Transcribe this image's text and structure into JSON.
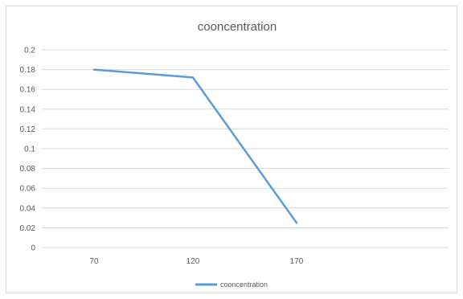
{
  "chart_data": {
    "type": "line",
    "title": "cooncentration",
    "categories": [
      "70",
      "120",
      "170"
    ],
    "series": [
      {
        "name": "cooncentration",
        "values": [
          0.18,
          0.172,
          0.025
        ]
      }
    ],
    "ylim": [
      0,
      0.2
    ],
    "y_ticks": [
      "0",
      "0.02",
      "0.04",
      "0.06",
      "0.08",
      "0.1",
      "0.12",
      "0.14",
      "0.16",
      "0.18",
      "0.2"
    ],
    "grid": true,
    "legend_position": "bottom",
    "colors": {
      "series": "#5b9bd5",
      "grid": "#d9d9d9",
      "text": "#595959"
    }
  }
}
